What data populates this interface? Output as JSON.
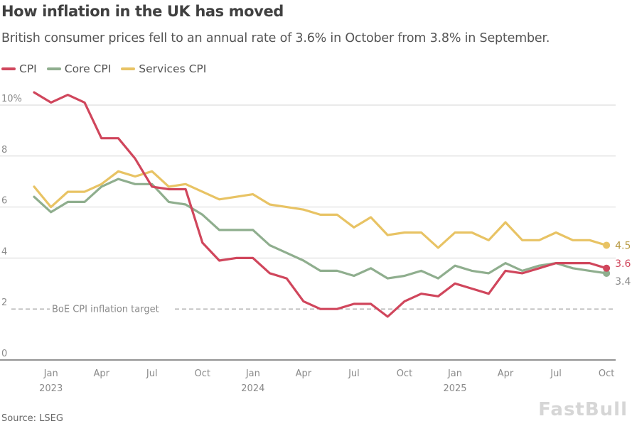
{
  "header": {
    "title": "How inflation in the UK has moved",
    "subtitle": "British consumer prices fell to an annual rate of 3.6% in October from 3.8% in September."
  },
  "footer": {
    "source": "Source: LSEG",
    "watermark": "FastBull"
  },
  "chart_data": {
    "type": "line",
    "title": "How inflation in the UK has moved",
    "subtitle": "British consumer prices fell to an annual rate of 3.6% in October from 3.8% in September.",
    "xlabel": "",
    "ylabel": "",
    "ylim": [
      0,
      10.5
    ],
    "grid": true,
    "legend_position": "top-left",
    "y_ticks": [
      {
        "value": 0,
        "label": "0"
      },
      {
        "value": 2,
        "label": "2"
      },
      {
        "value": 4,
        "label": "4"
      },
      {
        "value": 6,
        "label": "6"
      },
      {
        "value": 8,
        "label": "8"
      },
      {
        "value": 10,
        "label": "10%"
      }
    ],
    "x": [
      "Dec 2022",
      "Jan 2023",
      "Feb 2023",
      "Mar 2023",
      "Apr 2023",
      "May 2023",
      "Jun 2023",
      "Jul 2023",
      "Aug 2023",
      "Sep 2023",
      "Oct 2023",
      "Nov 2023",
      "Dec 2023",
      "Jan 2024",
      "Feb 2024",
      "Mar 2024",
      "Apr 2024",
      "May 2024",
      "Jun 2024",
      "Jul 2024",
      "Aug 2024",
      "Sep 2024",
      "Oct 2024",
      "Nov 2024",
      "Dec 2024",
      "Jan 2025",
      "Feb 2025",
      "Mar 2025",
      "Apr 2025",
      "May 2025",
      "Jun 2025",
      "Jul 2025",
      "Aug 2025",
      "Sep 2025",
      "Oct 2025"
    ],
    "x_ticks": [
      {
        "index": 1,
        "label": "Jan",
        "year": "2023"
      },
      {
        "index": 4,
        "label": "Apr",
        "year": ""
      },
      {
        "index": 7,
        "label": "Jul",
        "year": ""
      },
      {
        "index": 10,
        "label": "Oct",
        "year": ""
      },
      {
        "index": 13,
        "label": "Jan",
        "year": "2024"
      },
      {
        "index": 16,
        "label": "Apr",
        "year": ""
      },
      {
        "index": 19,
        "label": "Jul",
        "year": ""
      },
      {
        "index": 22,
        "label": "Oct",
        "year": ""
      },
      {
        "index": 25,
        "label": "Jan",
        "year": "2025"
      },
      {
        "index": 28,
        "label": "Apr",
        "year": ""
      },
      {
        "index": 31,
        "label": "Jul",
        "year": ""
      },
      {
        "index": 34,
        "label": "Oct",
        "year": ""
      }
    ],
    "series": [
      {
        "name": "Services CPI",
        "color": "#e8c364",
        "end_label": "4.5",
        "values": [
          6.8,
          6.0,
          6.6,
          6.6,
          6.9,
          7.4,
          7.2,
          7.4,
          6.8,
          6.9,
          6.6,
          6.3,
          6.4,
          6.5,
          6.1,
          6.0,
          5.9,
          5.7,
          5.7,
          5.2,
          5.6,
          4.9,
          5.0,
          5.0,
          4.4,
          5.0,
          5.0,
          4.7,
          5.4,
          4.7,
          4.7,
          5.0,
          4.7,
          4.7,
          4.5
        ]
      },
      {
        "name": "Core CPI",
        "color": "#8fae8e",
        "end_label": "3.4",
        "values": [
          6.4,
          5.8,
          6.2,
          6.2,
          6.8,
          7.1,
          6.9,
          6.9,
          6.2,
          6.1,
          5.7,
          5.1,
          5.1,
          5.1,
          4.5,
          4.2,
          3.9,
          3.5,
          3.5,
          3.3,
          3.6,
          3.2,
          3.3,
          3.5,
          3.2,
          3.7,
          3.5,
          3.4,
          3.8,
          3.5,
          3.7,
          3.8,
          3.6,
          3.5,
          3.4
        ]
      },
      {
        "name": "CPI",
        "color": "#d0465c",
        "end_label": "3.6",
        "values": [
          10.5,
          10.1,
          10.4,
          10.1,
          8.7,
          8.7,
          7.9,
          6.8,
          6.7,
          6.7,
          4.6,
          3.9,
          4.0,
          4.0,
          3.4,
          3.2,
          2.3,
          2.0,
          2.0,
          2.2,
          2.2,
          1.7,
          2.3,
          2.6,
          2.5,
          3.0,
          2.8,
          2.6,
          3.5,
          3.4,
          3.6,
          3.8,
          3.8,
          3.8,
          3.6
        ]
      }
    ],
    "legend": [
      {
        "name": "CPI",
        "color": "#d0465c"
      },
      {
        "name": "Core CPI",
        "color": "#8fae8e"
      },
      {
        "name": "Services CPI",
        "color": "#e8c364"
      }
    ],
    "annotations": [
      {
        "type": "hline",
        "value": 2,
        "label": "BoE CPI inflation target",
        "style": "dashed",
        "color": "#999999"
      }
    ]
  }
}
